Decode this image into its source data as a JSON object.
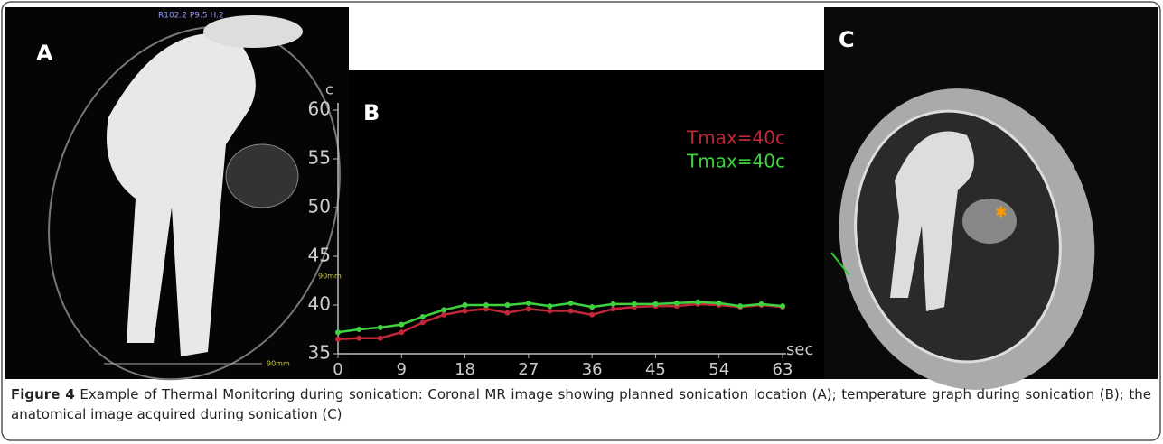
{
  "figure": {
    "panel_a": {
      "label": "A",
      "overlay": "R102.2 P9.5 H.2",
      "scale_label_right": "90mm",
      "scale_label_bottom": "90mm"
    },
    "panel_c": {
      "label": "C"
    },
    "caption_label": "Figure 4",
    "caption_text": "Example of Thermal Monitoring during sonication: Coronal MR image showing planned sonication location (A); temperature graph during sonication (B); the anatomical image acquired during sonication (C)"
  },
  "chart_data": {
    "type": "line",
    "panel_label": "B",
    "y_unit": "c",
    "x_unit": "sec",
    "x": [
      0,
      3,
      6,
      9,
      12,
      15,
      18,
      21,
      24,
      27,
      30,
      33,
      36,
      39,
      42,
      45,
      48,
      51,
      54,
      57,
      60,
      63
    ],
    "series": [
      {
        "name": "Tmax=40c",
        "color": "#c0283a",
        "values": [
          36.5,
          36.6,
          36.6,
          37.2,
          38.2,
          39.0,
          39.4,
          39.6,
          39.2,
          39.6,
          39.4,
          39.4,
          39.0,
          39.6,
          39.8,
          39.9,
          39.9,
          40.1,
          40.0,
          39.8,
          40.0,
          39.8
        ]
      },
      {
        "name": "Tmax=40c",
        "color": "#3fd23f",
        "values": [
          37.2,
          37.5,
          37.7,
          38.0,
          38.8,
          39.5,
          40.0,
          40.0,
          40.0,
          40.2,
          39.9,
          40.2,
          39.8,
          40.1,
          40.1,
          40.1,
          40.2,
          40.3,
          40.2,
          39.9,
          40.1,
          39.9
        ]
      }
    ],
    "xlim": [
      0,
      63
    ],
    "ylim": [
      35,
      60
    ],
    "xticks": [
      0,
      9,
      18,
      27,
      36,
      45,
      54,
      63
    ],
    "yticks": [
      35,
      40,
      45,
      50,
      55,
      60
    ]
  }
}
